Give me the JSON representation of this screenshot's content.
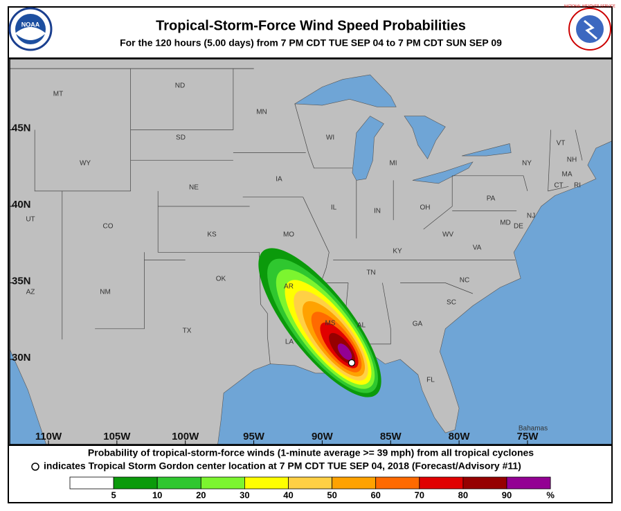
{
  "header": {
    "title": "Tropical-Storm-Force Wind Speed Probabilities",
    "subtitle": "For the 120 hours (5.00 days) from 7 PM CDT TUE SEP 04 to 7 PM CDT SUN SEP 09",
    "left_logo": "NOAA",
    "right_logo": "NATIONAL WEATHER SERVICE"
  },
  "map": {
    "lat_ticks": [
      {
        "value": 45,
        "label": "45N"
      },
      {
        "value": 40,
        "label": "40N"
      },
      {
        "value": 35,
        "label": "35N"
      },
      {
        "value": 30,
        "label": "30N"
      }
    ],
    "lon_ticks": [
      {
        "value": -110,
        "label": "110W"
      },
      {
        "value": -105,
        "label": "105W"
      },
      {
        "value": -100,
        "label": "100W"
      },
      {
        "value": -95,
        "label": "95W"
      },
      {
        "value": -90,
        "label": "90W"
      },
      {
        "value": -85,
        "label": "85W"
      },
      {
        "value": -80,
        "label": "80W"
      },
      {
        "value": -75,
        "label": "75W"
      }
    ],
    "places": [
      "MT",
      "ND",
      "MN",
      "WI",
      "MI",
      "SD",
      "WY",
      "NE",
      "IA",
      "IL",
      "IN",
      "OH",
      "PA",
      "NY",
      "VT",
      "NH",
      "MA",
      "CT",
      "RI",
      "NJ",
      "DE",
      "MD",
      "CO",
      "KS",
      "MO",
      "KY",
      "WV",
      "VA",
      "UT",
      "OK",
      "TN",
      "NC",
      "SC",
      "AR",
      "MS",
      "AL",
      "GA",
      "AZ",
      "NM",
      "TX",
      "LA",
      "FL",
      "Bahamas"
    ]
  },
  "footer": {
    "line1": "Probability of tropical-storm-force winds (1-minute average >= 39 mph) from all tropical cyclones",
    "line2": "indicates Tropical Storm Gordon center location at 7 PM CDT TUE SEP 04, 2018 (Forecast/Advisory #11)"
  },
  "legend": {
    "colors": [
      "#ffffff",
      "#0b9a0b",
      "#2fc72f",
      "#7cf52f",
      "#ffff00",
      "#ffd045",
      "#ffa200",
      "#ff6a00",
      "#e00000",
      "#960000",
      "#930093"
    ],
    "ticks": [
      5,
      10,
      20,
      30,
      40,
      50,
      60,
      70,
      80,
      90
    ],
    "unit": "%"
  }
}
